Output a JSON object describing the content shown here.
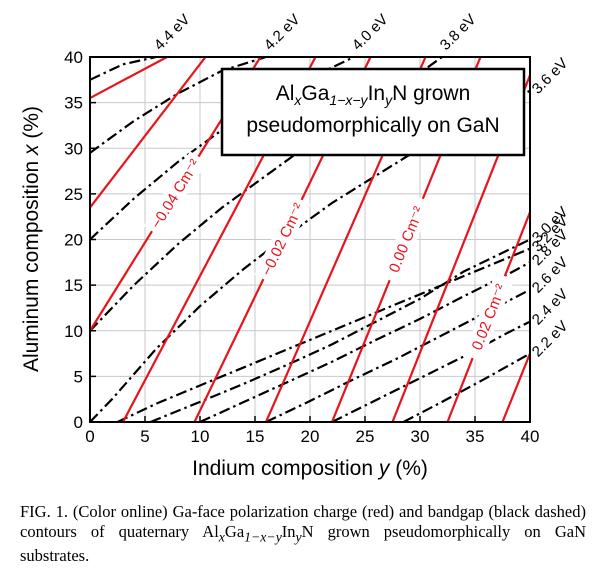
{
  "chart_data": {
    "type": "line",
    "xlabel_text": "Indium composition ",
    "xlabel_var": "y",
    "xlabel_unit": " (%)",
    "ylabel_text": "Aluminum composition ",
    "ylabel_var": "x",
    "ylabel_unit": " (%)",
    "xlim": [
      0,
      40
    ],
    "ylim": [
      0,
      40
    ],
    "xticks": [
      0,
      5,
      10,
      15,
      20,
      25,
      30,
      35,
      40
    ],
    "yticks": [
      0,
      5,
      10,
      15,
      20,
      25,
      30,
      35,
      40
    ],
    "grid": true,
    "legend": {
      "line1_prefix": "Al",
      "line1_sub_x": "x",
      "line1_mid": "Ga",
      "line1_sub_1xy": "1−x−y",
      "line1_mid2": "In",
      "line1_sub_y": "y",
      "line1_suffix": "N grown",
      "line2": "pseudomorphically on GaN",
      "placement": "top-right"
    },
    "polarization_color": "#e8141b",
    "bandgap_color": "#000000",
    "polarization_contours": [
      {
        "x": [
          0,
          7
        ],
        "y": [
          35.5,
          40
        ]
      },
      {
        "x": [
          0,
          10.5
        ],
        "y": [
          23.5,
          40
        ]
      },
      {
        "x": [
          0,
          15.5
        ],
        "y": [
          10,
          40
        ],
        "label": "−0.04 Cm⁻²"
      },
      {
        "x": [
          3,
          20.5
        ],
        "y": [
          0,
          40
        ]
      },
      {
        "x": [
          9.5,
          25.5
        ],
        "y": [
          0,
          40
        ],
        "label": "−0.02 Cm⁻²"
      },
      {
        "x": [
          16,
          30.5
        ],
        "y": [
          0,
          40
        ]
      },
      {
        "x": [
          22,
          35.5
        ],
        "y": [
          0,
          40
        ],
        "label": "0.00 Cm⁻²"
      },
      {
        "x": [
          27.5,
          40
        ],
        "y": [
          0,
          38
        ]
      },
      {
        "x": [
          32.5,
          40
        ],
        "y": [
          0,
          23
        ],
        "label": "0.02 Cm⁻²"
      },
      {
        "x": [
          37.5,
          40
        ],
        "y": [
          0,
          7.5
        ]
      }
    ],
    "bandgap_contours": [
      {
        "label": "4.4 eV",
        "x": [
          0,
          3,
          6
        ],
        "y": [
          37.5,
          39.2,
          40
        ]
      },
      {
        "label": "4.2 eV",
        "x": [
          0,
          4,
          8,
          12,
          16
        ],
        "y": [
          29.5,
          33,
          36,
          38.5,
          40
        ]
      },
      {
        "label": "4.0 eV",
        "x": [
          0,
          4,
          8,
          12,
          16,
          20,
          24
        ],
        "y": [
          20,
          24.5,
          28.5,
          32,
          35,
          37.7,
          40
        ]
      },
      {
        "label": "3.8 eV",
        "x": [
          0,
          4,
          8,
          12,
          16,
          20,
          24,
          28,
          32
        ],
        "y": [
          10,
          15,
          19.5,
          23.5,
          27,
          30.5,
          33.5,
          36.5,
          40
        ]
      },
      {
        "label": "3.6 eV",
        "x": [
          0,
          2,
          6,
          10,
          14,
          18,
          22,
          26,
          30,
          34,
          40
        ],
        "y": [
          0,
          2.5,
          8,
          12.7,
          16.8,
          20.5,
          24,
          27,
          30,
          32.7,
          36.3
        ]
      },
      {
        "label": "3.2 eV",
        "x": [
          2.5,
          6,
          10,
          14,
          18,
          22,
          26,
          30,
          34,
          40
        ],
        "y": [
          0,
          2,
          4,
          6,
          8,
          10,
          12,
          14,
          16,
          19
        ]
      },
      {
        "label": "3.0 eV",
        "x": [
          5.5,
          10,
          14,
          18,
          22,
          26,
          30,
          34,
          40
        ],
        "y": [
          0,
          2.2,
          4.2,
          6.3,
          8.5,
          11,
          13.5,
          16.5,
          20
        ]
      },
      {
        "label": "2.8 eV",
        "x": [
          10,
          14,
          18,
          22,
          26,
          30,
          34,
          38,
          40
        ],
        "y": [
          0,
          2.2,
          4.4,
          6.6,
          9,
          11.3,
          13.8,
          16.2,
          17.5
        ]
      },
      {
        "label": "2.6 eV",
        "x": [
          16,
          20,
          24,
          28,
          32,
          36,
          40
        ],
        "y": [
          0,
          2.3,
          4.7,
          7,
          9.5,
          12,
          14.5
        ]
      },
      {
        "label": "2.4 eV",
        "x": [
          22,
          26,
          30,
          34,
          38,
          40
        ],
        "y": [
          0,
          2.4,
          4.8,
          7.2,
          9.8,
          11
        ]
      },
      {
        "label": "2.2 eV",
        "x": [
          28.5,
          32,
          36,
          40
        ],
        "y": [
          0,
          2.2,
          4.8,
          7.5
        ]
      }
    ],
    "bandgap_labels": [
      "4.4 eV",
      "4.2 eV",
      "4.0 eV",
      "3.8 eV",
      "3.6 eV",
      "3.2 eV",
      "3.0 eV",
      "2.8 eV",
      "2.6 eV",
      "2.4 eV",
      "2.2 eV"
    ]
  },
  "caption": {
    "prefix": "FIG. 1. (Color online) Ga-face polarization charge (red) and bandgap (black dashed) contours of quaternary ",
    "al": "Al",
    "sub_x": "x",
    "ga": "Ga",
    "sub_1xy": "1−x−y",
    "in": "In",
    "sub_y": "y",
    "suffix": "N grown pseudomorphically on GaN substrates."
  }
}
